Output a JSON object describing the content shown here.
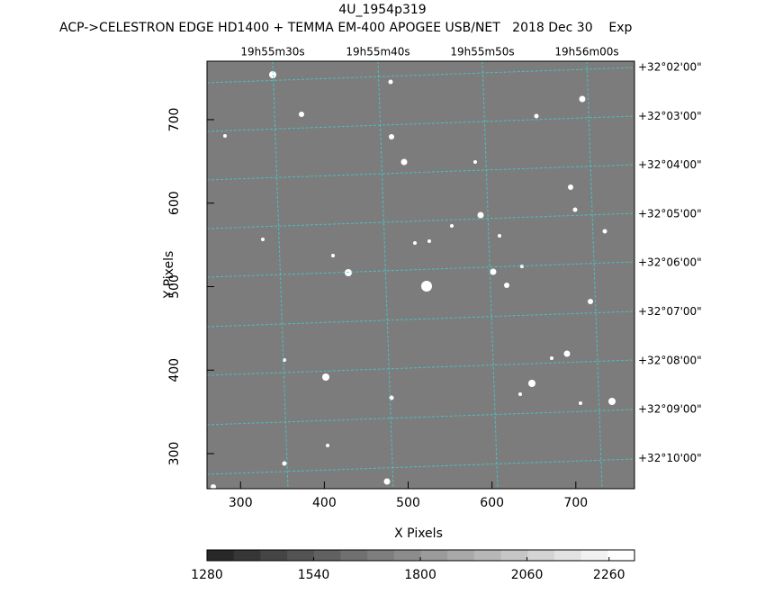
{
  "chart_data": {
    "type": "image",
    "title": "4U_1954p319",
    "subtitle": "ACP->CELESTRON EDGE HD1400 + TEMMA EM-400 APOGEE USB/NET   2018 Dec 30    Exp",
    "xlabel": "X Pixels",
    "ylabel": "Y Pixels",
    "xlim": [
      260,
      770
    ],
    "ylim": [
      258,
      770
    ],
    "xticks": [
      300,
      400,
      500,
      600,
      700
    ],
    "yticks": [
      300,
      400,
      500,
      600,
      700
    ],
    "ra_labels": [
      "19h55m30s",
      "19h55m40s",
      "19h55m50s",
      "19h56m00s"
    ],
    "dec_labels": [
      "+32°02'00\"",
      "+32°03'00\"",
      "+32°04'00\"",
      "+32°05'00\"",
      "+32°06'00\"",
      "+32°07'00\"",
      "+32°08'00\"",
      "+32°09'00\"",
      "+32°10'00\""
    ],
    "colorbar": {
      "lim": [
        1280,
        2322
      ],
      "ticks": [
        1280,
        1540,
        1800,
        2060,
        2260
      ]
    }
  }
}
